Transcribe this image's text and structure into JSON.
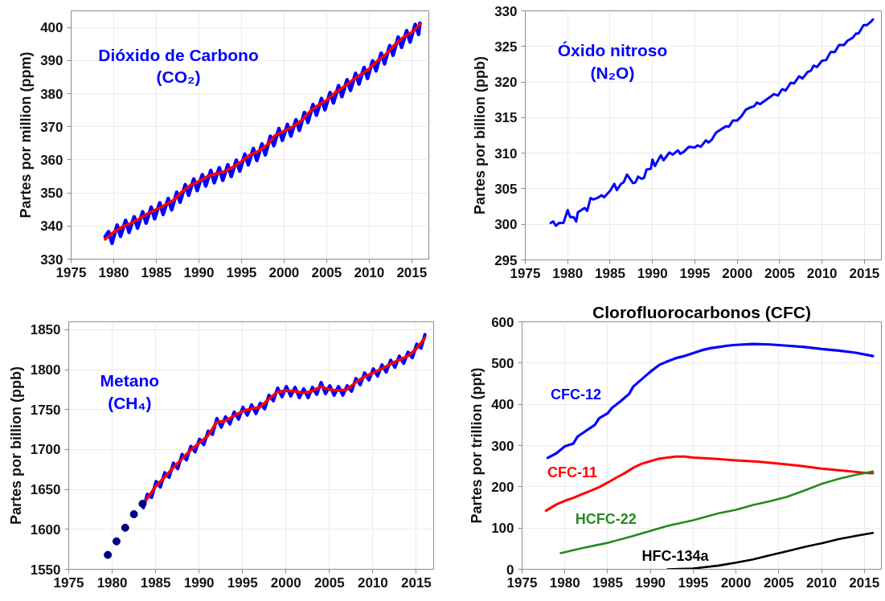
{
  "chart_data": [
    {
      "type": "line",
      "ylabel": "Partes por million (ppm)",
      "xlim": [
        1975,
        2017
      ],
      "xticks": [
        1975,
        1980,
        1985,
        1990,
        1995,
        2000,
        2005,
        2010,
        2015
      ],
      "ylim": [
        330,
        405
      ],
      "yticks": [
        330,
        340,
        350,
        360,
        370,
        380,
        390,
        400
      ],
      "grid": true,
      "series": [
        {
          "name": "Dióxido de Carbono (CO₂)",
          "color": "#0000ff",
          "x": [
            1979.0,
            1979.4,
            1979.8,
            1980.4,
            1980.8,
            1981.4,
            1981.8,
            1982.4,
            1982.8,
            1983.4,
            1983.8,
            1984.4,
            1984.8,
            1985.4,
            1985.8,
            1986.4,
            1986.8,
            1987.4,
            1987.8,
            1988.4,
            1988.8,
            1989.4,
            1989.8,
            1990.4,
            1990.8,
            1991.4,
            1991.8,
            1992.4,
            1992.8,
            1993.4,
            1993.8,
            1994.4,
            1994.8,
            1995.4,
            1995.8,
            1996.4,
            1996.8,
            1997.4,
            1997.8,
            1998.4,
            1998.8,
            1999.4,
            1999.8,
            2000.4,
            2000.8,
            2001.4,
            2001.8,
            2002.4,
            2002.8,
            2003.4,
            2003.8,
            2004.4,
            2004.8,
            2005.4,
            2005.8,
            2006.4,
            2006.8,
            2007.4,
            2007.8,
            2008.4,
            2008.8,
            2009.4,
            2009.8,
            2010.4,
            2010.8,
            2011.4,
            2011.8,
            2012.4,
            2012.8,
            2013.4,
            2013.8,
            2014.4,
            2014.8,
            2015.4,
            2015.8,
            2015.95
          ],
          "values": [
            336.8,
            338.3,
            334.8,
            340.3,
            336.9,
            341.7,
            338.1,
            342.8,
            339.4,
            344.3,
            340.9,
            345.7,
            342.2,
            347.0,
            343.5,
            348.3,
            344.9,
            350.2,
            347.2,
            352.5,
            349.3,
            354.2,
            350.7,
            355.5,
            352.1,
            356.8,
            353.1,
            357.6,
            353.8,
            358.5,
            355.0,
            359.9,
            356.6,
            361.7,
            358.5,
            363.4,
            359.8,
            364.8,
            361.5,
            367.1,
            364.3,
            369.4,
            365.9,
            370.7,
            367.2,
            372.1,
            368.9,
            374.3,
            371.3,
            376.7,
            373.5,
            378.5,
            375.1,
            380.3,
            377.2,
            382.4,
            379.1,
            384.2,
            381.0,
            386.1,
            382.9,
            387.9,
            384.6,
            389.9,
            386.9,
            392.2,
            389.0,
            394.5,
            391.6,
            397.1,
            394.0,
            399.0,
            395.6,
            400.9,
            397.9,
            401.3
          ]
        },
        {
          "color": "#ff0000",
          "x": [
            1979,
            1980,
            1981,
            1982,
            1983,
            1984,
            1985,
            1986,
            1987,
            1988,
            1989,
            1990,
            1991,
            1992,
            1993,
            1994,
            1995,
            1996,
            1997,
            1998,
            1999,
            2000,
            2001,
            2002,
            2003,
            2004,
            2005,
            2006,
            2007,
            2008,
            2009,
            2010,
            2011,
            2012,
            2013,
            2014,
            2015,
            2016
          ],
          "values": [
            336.0,
            338.2,
            339.8,
            340.8,
            342.2,
            343.8,
            345.0,
            346.3,
            347.8,
            350.3,
            352.3,
            353.5,
            355.0,
            355.8,
            356.5,
            357.8,
            359.5,
            361.5,
            362.6,
            364.5,
            367.5,
            368.7,
            370.0,
            371.8,
            374.5,
            376.5,
            378.0,
            380.3,
            382.0,
            384.0,
            385.8,
            387.5,
            390.0,
            392.0,
            394.8,
            397.0,
            398.5,
            401.0
          ]
        }
      ]
    },
    {
      "type": "line",
      "ylabel": "Partes por billion (ppb)",
      "xlim": [
        1975,
        2017
      ],
      "xticks": [
        1975,
        1980,
        1985,
        1990,
        1995,
        2000,
        2005,
        2010,
        2015
      ],
      "ylim": [
        295,
        330
      ],
      "yticks": [
        295,
        300,
        305,
        310,
        315,
        320,
        325,
        330
      ],
      "grid": true,
      "series": [
        {
          "name": "Óxido nitroso (N₂O)",
          "color": "#0000ff",
          "x": [
            1978.0,
            1978.3,
            1978.6,
            1979.0,
            1979.5,
            1980.0,
            1980.3,
            1980.7,
            1981.0,
            1981.2,
            1982.0,
            1982.3,
            1982.7,
            1983.0,
            1983.5,
            1984.0,
            1984.3,
            1985.0,
            1985.5,
            1985.8,
            1986.3,
            1986.6,
            1987.0,
            1987.7,
            1988.0,
            1988.3,
            1988.7,
            1989.0,
            1989.3,
            1989.8,
            1990.0,
            1990.3,
            1990.7,
            1991.0,
            1991.3,
            1992.0,
            1992.4,
            1993.0,
            1993.3,
            1993.7,
            1994.3,
            1995.0,
            1995.3,
            1995.7,
            1996.3,
            1996.6,
            1997.0,
            1997.5,
            1998.3,
            1998.7,
            1999.0,
            1999.5,
            2000.0,
            2000.5,
            2001.0,
            2001.5,
            2002.0,
            2002.3,
            2002.7,
            2003.3,
            2004.0,
            2004.3,
            2004.8,
            2005.3,
            2005.7,
            2006.3,
            2006.7,
            2007.3,
            2007.7,
            2008.3,
            2008.7,
            2009.0,
            2009.4,
            2010.0,
            2010.5,
            2011.0,
            2011.5,
            2012.0,
            2012.6,
            2013.0,
            2013.6,
            2014.0,
            2014.3,
            2014.9,
            2015.3,
            2015.7,
            2016.0
          ],
          "values": [
            300.2,
            300.4,
            299.8,
            300.2,
            300.2,
            302.0,
            301.0,
            301.0,
            300.4,
            301.7,
            302.3,
            301.9,
            303.7,
            303.5,
            303.7,
            304.1,
            303.8,
            304.7,
            305.7,
            304.8,
            305.7,
            305.9,
            307.0,
            305.8,
            305.9,
            306.7,
            306.4,
            306.5,
            307.7,
            307.8,
            309.1,
            308.2,
            309.1,
            309.7,
            309.0,
            310.1,
            309.8,
            310.4,
            309.9,
            310.2,
            310.9,
            310.8,
            311.1,
            310.9,
            311.8,
            311.5,
            311.9,
            312.9,
            313.5,
            313.8,
            313.7,
            314.6,
            314.6,
            315.2,
            316.1,
            316.4,
            316.6,
            317.1,
            316.9,
            317.4,
            318.0,
            318.3,
            318.1,
            319.0,
            318.8,
            319.9,
            319.8,
            320.8,
            320.5,
            321.4,
            321.6,
            322.3,
            322.1,
            323.0,
            323.1,
            324.2,
            324.2,
            325.2,
            325.2,
            325.8,
            326.2,
            326.8,
            326.8,
            328.0,
            328.0,
            328.4,
            328.8
          ]
        }
      ]
    },
    {
      "type": "line",
      "ylabel": "Partes por billion (ppb)",
      "xlim": [
        1975,
        2017
      ],
      "xticks": [
        1975,
        1980,
        1985,
        1990,
        1995,
        2000,
        2005,
        2010,
        2015
      ],
      "ylim": [
        1550,
        1860
      ],
      "yticks": [
        1550,
        1600,
        1650,
        1700,
        1750,
        1800,
        1850
      ],
      "grid": true,
      "series": [
        {
          "name": "Metano (CH₄)",
          "color": "#0000ff",
          "x": [
            1983.6,
            1984.05,
            1984.55,
            1985.05,
            1985.55,
            1986.05,
            1986.55,
            1987.05,
            1987.55,
            1988.05,
            1988.55,
            1989.05,
            1989.55,
            1990.05,
            1990.55,
            1991.05,
            1991.55,
            1992.05,
            1992.55,
            1993.05,
            1993.55,
            1994.05,
            1994.55,
            1995.05,
            1995.55,
            1996.05,
            1996.55,
            1997.05,
            1997.55,
            1998.05,
            1998.55,
            1999.05,
            1999.55,
            2000.05,
            2000.55,
            2001.05,
            2001.55,
            2002.05,
            2002.55,
            2003.05,
            2003.55,
            2004.05,
            2004.55,
            2005.05,
            2005.55,
            2006.05,
            2006.55,
            2007.05,
            2007.55,
            2008.05,
            2008.55,
            2009.05,
            2009.55,
            2010.05,
            2010.55,
            2011.05,
            2011.55,
            2012.05,
            2012.55,
            2013.05,
            2013.55,
            2014.05,
            2014.55,
            2015.05,
            2015.55,
            2016.0
          ],
          "values": [
            1627,
            1644,
            1640,
            1660,
            1653,
            1671,
            1665,
            1683,
            1676,
            1694,
            1687,
            1704,
            1697,
            1713,
            1706,
            1723,
            1719,
            1739,
            1728,
            1741,
            1732,
            1747,
            1738,
            1753,
            1743,
            1756,
            1745,
            1758,
            1751,
            1768,
            1761,
            1777,
            1766,
            1779,
            1767,
            1778,
            1765,
            1776,
            1765,
            1778,
            1769,
            1784,
            1770,
            1780,
            1768,
            1779,
            1768,
            1780,
            1773,
            1789,
            1781,
            1796,
            1787,
            1801,
            1792,
            1806,
            1797,
            1812,
            1803,
            1817,
            1808,
            1822,
            1815,
            1832,
            1827,
            1844
          ]
        },
        {
          "color": "#ff0000",
          "x": [
            1983.6,
            1984,
            1985,
            1986,
            1987,
            1988,
            1989,
            1990,
            1991,
            1992,
            1993,
            1994,
            1995,
            1996,
            1997,
            1998,
            1999,
            2000,
            2001,
            2002,
            2003,
            2004,
            2005,
            2006,
            2007,
            2008,
            2009,
            2010,
            2011,
            2012,
            2013,
            2014,
            2015,
            2016
          ],
          "values": [
            1632,
            1638,
            1654,
            1665,
            1677,
            1688,
            1699,
            1708,
            1717,
            1734,
            1736,
            1742,
            1748,
            1751,
            1753,
            1763,
            1772,
            1774,
            1773,
            1771,
            1773,
            1779,
            1775,
            1774,
            1775,
            1784,
            1791,
            1796,
            1801,
            1807,
            1812,
            1817,
            1826,
            1840
          ]
        },
        {
          "type": "scatter",
          "marker": "circle",
          "color": "#000080",
          "x": [
            1979.5,
            1980.5,
            1981.5,
            1982.5,
            1983.5
          ],
          "values": [
            1568,
            1585,
            1602,
            1619,
            1632
          ]
        }
      ]
    },
    {
      "type": "line",
      "title": "Clorofluorocarbonos (CFC)",
      "ylabel": "Partes por trillion (ppt)",
      "xlim": [
        1975,
        2017
      ],
      "xticks": [
        1975,
        1980,
        1985,
        1990,
        1995,
        2000,
        2005,
        2010,
        2015
      ],
      "ylim": [
        0,
        600
      ],
      "yticks": [
        0,
        100,
        200,
        300,
        400,
        500,
        600
      ],
      "grid": true,
      "series": [
        {
          "name": "CFC-12",
          "color": "#0000ff",
          "x": [
            1978.0,
            1979.0,
            1980.0,
            1981.0,
            1981.5,
            1982.5,
            1983.5,
            1984.0,
            1985.0,
            1985.5,
            1986.5,
            1987.5,
            1988.0,
            1989.0,
            1990.0,
            1991.0,
            1992.0,
            1993.0,
            1994.0,
            1995.0,
            1996.0,
            1997.0,
            1998.0,
            1999.0,
            2000.0,
            2002.0,
            2004.0,
            2006.0,
            2008.0,
            2010.0,
            2012.0,
            2014.0,
            2016.0
          ],
          "values": [
            270,
            281,
            298,
            305,
            322,
            336,
            350,
            366,
            378,
            391,
            407,
            425,
            443,
            461,
            479,
            495,
            504,
            512,
            517,
            524,
            531,
            536,
            539,
            542,
            544,
            546,
            545,
            542,
            539,
            534,
            530,
            525,
            517
          ]
        },
        {
          "name": "CFC-11",
          "color": "#ff0000",
          "x": [
            1977.8,
            1979,
            1980,
            1981,
            1982,
            1983,
            1984,
            1985,
            1986,
            1987,
            1988,
            1989,
            1990,
            1991,
            1992,
            1993,
            1994,
            1995,
            1997.5,
            2000,
            2002.5,
            2005,
            2007.5,
            2010,
            2012.5,
            2015,
            2016
          ],
          "values": [
            142,
            157,
            166,
            173,
            182,
            190,
            199,
            210,
            222,
            233,
            246,
            256,
            262,
            268,
            271,
            273,
            273,
            271,
            268,
            264,
            261,
            256,
            251,
            244,
            239,
            234,
            233
          ]
        },
        {
          "name": "HCFC-22",
          "color": "#228b22",
          "x": [
            1979.5,
            1982,
            1985,
            1988,
            1990,
            1992,
            1995,
            1998,
            2000,
            2002,
            2004,
            2006,
            2008,
            2010,
            2012,
            2014,
            2016
          ],
          "values": [
            39,
            51,
            64,
            81,
            93,
            105,
            119,
            136,
            144,
            156,
            165,
            176,
            191,
            207,
            219,
            229,
            237
          ]
        },
        {
          "name": "HFC-134a",
          "color": "#000000",
          "x": [
            1992,
            1995,
            1998,
            2000,
            2002,
            2004,
            2006,
            2008,
            2010,
            2012,
            2014,
            2016
          ],
          "values": [
            0,
            2,
            9,
            16,
            24,
            34,
            44,
            54,
            63,
            73,
            81,
            88
          ]
        }
      ]
    }
  ]
}
